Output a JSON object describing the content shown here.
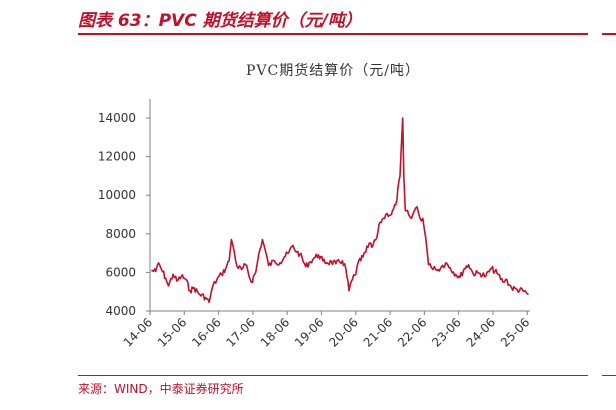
{
  "figure": {
    "title": "图表 63：PVC 期货结算价（元/吨）",
    "source": "来源：WIND，中泰证券研究所"
  },
  "colors": {
    "accent": "#c0102a",
    "series": "#c0102a",
    "axis": "#808080"
  },
  "chart_data": {
    "type": "line",
    "title": "PVC期货结算价（元/吨）",
    "xlabel": "",
    "ylabel": "",
    "ylim": [
      4000,
      14000
    ],
    "yticks": [
      4000,
      6000,
      8000,
      10000,
      12000,
      14000
    ],
    "xticks": [
      "14-06",
      "15-06",
      "16-06",
      "17-06",
      "18-06",
      "19-06",
      "20-06",
      "21-06",
      "22-06",
      "23-06",
      "24-06",
      "25-06"
    ],
    "grid": false,
    "series": [
      {
        "name": "",
        "points": [
          [
            "2014-06-15",
            6100
          ],
          [
            "2014-08-01",
            6050
          ],
          [
            "2014-09-01",
            6500
          ],
          [
            "2014-10-01",
            6150
          ],
          [
            "2014-11-15",
            5700
          ],
          [
            "2014-12-15",
            5300
          ],
          [
            "2015-02-01",
            5900
          ],
          [
            "2015-03-15",
            5550
          ],
          [
            "2015-05-01",
            5800
          ],
          [
            "2015-06-15",
            5650
          ],
          [
            "2015-08-01",
            5050
          ],
          [
            "2015-09-15",
            5200
          ],
          [
            "2015-11-01",
            4900
          ],
          [
            "2016-01-15",
            4700
          ],
          [
            "2016-02-20",
            4450
          ],
          [
            "2016-04-01",
            5300
          ],
          [
            "2016-05-15",
            5650
          ],
          [
            "2016-07-01",
            5900
          ],
          [
            "2016-08-15",
            6200
          ],
          [
            "2016-09-20",
            6600
          ],
          [
            "2016-10-15",
            7700
          ],
          [
            "2016-11-15",
            7050
          ],
          [
            "2016-12-15",
            6300
          ],
          [
            "2017-02-01",
            6150
          ],
          [
            "2017-03-15",
            6400
          ],
          [
            "2017-05-15",
            5500
          ],
          [
            "2017-07-01",
            6000
          ],
          [
            "2017-08-01",
            6900
          ],
          [
            "2017-09-10",
            7700
          ],
          [
            "2017-10-15",
            7050
          ],
          [
            "2017-11-15",
            6350
          ],
          [
            "2018-01-15",
            6600
          ],
          [
            "2018-03-15",
            6500
          ],
          [
            "2018-05-01",
            6800
          ],
          [
            "2018-06-15",
            7000
          ],
          [
            "2018-08-01",
            7400
          ],
          [
            "2018-09-10",
            7050
          ],
          [
            "2018-10-15",
            6950
          ],
          [
            "2018-12-15",
            6300
          ],
          [
            "2019-02-01",
            6550
          ],
          [
            "2019-03-15",
            6750
          ],
          [
            "2019-05-01",
            6900
          ],
          [
            "2019-06-15",
            6600
          ],
          [
            "2019-08-01",
            6500
          ],
          [
            "2019-09-15",
            6550
          ],
          [
            "2019-11-01",
            6450
          ],
          [
            "2020-01-10",
            6600
          ],
          [
            "2020-02-15",
            6200
          ],
          [
            "2020-03-20",
            5050
          ],
          [
            "2020-04-15",
            5550
          ],
          [
            "2020-06-01",
            5900
          ],
          [
            "2020-07-01",
            6600
          ],
          [
            "2020-08-15",
            6800
          ],
          [
            "2020-09-15",
            7050
          ],
          [
            "2020-10-20",
            7500
          ],
          [
            "2020-11-20",
            7300
          ],
          [
            "2021-01-10",
            7800
          ],
          [
            "2021-02-15",
            8600
          ],
          [
            "2021-03-20",
            8800
          ],
          [
            "2021-05-01",
            9050
          ],
          [
            "2021-06-15",
            9000
          ],
          [
            "2021-08-01",
            9500
          ],
          [
            "2021-09-15",
            11000
          ],
          [
            "2021-10-13",
            14000
          ],
          [
            "2021-10-25",
            11000
          ],
          [
            "2021-11-10",
            9200
          ],
          [
            "2021-12-15",
            9000
          ],
          [
            "2022-01-15",
            8800
          ],
          [
            "2022-02-15",
            9200
          ],
          [
            "2022-03-15",
            9400
          ],
          [
            "2022-04-15",
            8800
          ],
          [
            "2022-05-15",
            8800
          ],
          [
            "2022-06-15",
            7800
          ],
          [
            "2022-07-15",
            6400
          ],
          [
            "2022-08-15",
            6250
          ],
          [
            "2022-09-15",
            6300
          ],
          [
            "2022-10-15",
            6100
          ],
          [
            "2022-12-01",
            6300
          ],
          [
            "2023-01-15",
            6500
          ],
          [
            "2023-03-01",
            6250
          ],
          [
            "2023-05-01",
            5900
          ],
          [
            "2023-06-15",
            5750
          ],
          [
            "2023-08-01",
            6200
          ],
          [
            "2023-09-15",
            6400
          ],
          [
            "2023-11-01",
            5950
          ],
          [
            "2024-01-15",
            5950
          ],
          [
            "2024-03-15",
            5800
          ],
          [
            "2024-05-15",
            6200
          ],
          [
            "2024-07-15",
            5950
          ],
          [
            "2024-09-15",
            5500
          ],
          [
            "2024-10-15",
            5650
          ],
          [
            "2024-12-15",
            5200
          ],
          [
            "2025-02-15",
            5100
          ],
          [
            "2025-04-15",
            5050
          ],
          [
            "2025-06-15",
            4850
          ]
        ]
      }
    ]
  }
}
